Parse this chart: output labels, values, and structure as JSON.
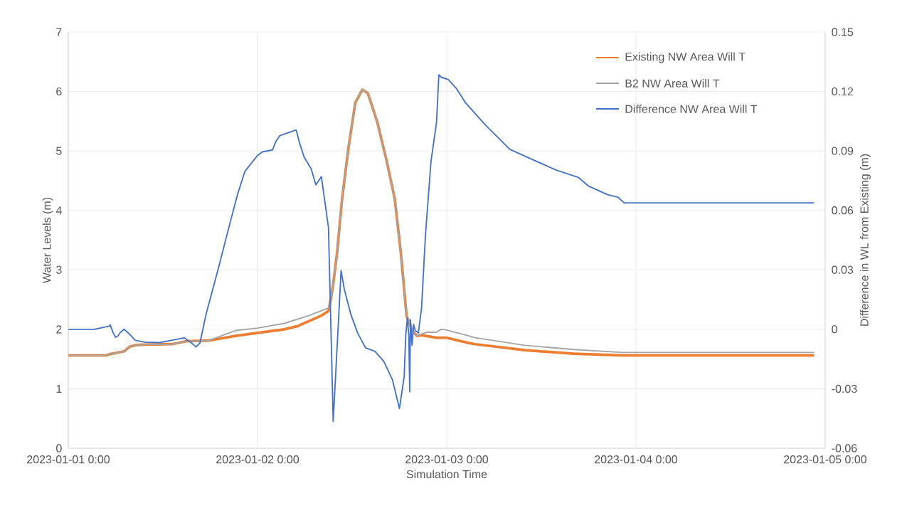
{
  "chart_data": {
    "type": "line",
    "xlabel": "Simulation Time",
    "ylabel": "Water Levels (m)",
    "y2label": "Difference in WL from Existing (m)",
    "xlim": [
      "2023-01-01T00:00",
      "2023-01-05T00:00"
    ],
    "xticks": [
      {
        "value": "2023-01-01T00:00",
        "label": "2023-01-01 0:00"
      },
      {
        "value": "2023-01-02T00:00",
        "label": "2023-01-02 0:00"
      },
      {
        "value": "2023-01-03T00:00",
        "label": "2023-01-03 0:00"
      },
      {
        "value": "2023-01-04T00:00",
        "label": "2023-01-04 0:00"
      },
      {
        "value": "2023-01-05T00:00",
        "label": "2023-01-05 0:00"
      }
    ],
    "ylim": [
      0,
      7
    ],
    "yticks": [
      0,
      1,
      2,
      3,
      4,
      5,
      6,
      7
    ],
    "y2lim": [
      -0.06,
      0.15
    ],
    "y2ticks": [
      -0.06,
      -0.03,
      0,
      0.03,
      0.06,
      0.09,
      0.12,
      0.15
    ],
    "grid": true,
    "legend": "top right",
    "line_style": "solid",
    "series": [
      {
        "name": "Existing NW Area Will T",
        "color": "#ed7d31",
        "x": [
          "2023-01-01T00:00",
          "2023-01-01T04:42",
          "2023-01-01T05:12",
          "2023-01-01T07:06",
          "2023-01-01T07:48",
          "2023-01-01T08:48",
          "2023-01-01T13:06",
          "2023-01-01T15:00",
          "2023-01-01T17:48",
          "2023-01-01T21:12",
          "2023-01-02T00:00",
          "2023-01-02T03:24",
          "2023-01-02T05:00",
          "2023-01-02T08:06",
          "2023-01-02T09:00",
          "2023-01-02T09:18",
          "2023-01-02T09:36",
          "2023-01-02T10:06",
          "2023-01-02T10:42",
          "2023-01-02T11:30",
          "2023-01-02T12:24",
          "2023-01-02T13:18",
          "2023-01-02T14:00",
          "2023-01-02T15:12",
          "2023-01-02T16:24",
          "2023-01-02T17:24",
          "2023-01-02T18:12",
          "2023-01-02T18:54",
          "2023-01-02T19:36",
          "2023-01-02T20:12",
          "2023-01-02T20:48",
          "2023-01-02T22:42",
          "2023-01-02T23:54",
          "2023-01-03T02:48",
          "2023-01-03T03:36",
          "2023-01-03T09:54",
          "2023-01-03T16:06",
          "2023-01-03T20:42",
          "2023-01-03T22:18",
          "2023-01-04T22:36"
        ],
        "values": [
          1.56,
          1.56,
          1.58,
          1.63,
          1.71,
          1.74,
          1.75,
          1.8,
          1.81,
          1.89,
          1.94,
          2.0,
          2.05,
          2.23,
          2.31,
          2.51,
          2.76,
          3.3,
          4.16,
          5.02,
          5.81,
          6.03,
          5.97,
          5.48,
          4.82,
          4.2,
          3.26,
          2.23,
          1.98,
          1.89,
          1.9,
          1.86,
          1.86,
          1.77,
          1.75,
          1.65,
          1.59,
          1.57,
          1.56,
          1.56
        ]
      },
      {
        "name": "B2 NW Area Will T",
        "color": "#a5a5a5",
        "x": [
          "2023-01-01T00:00",
          "2023-01-01T04:42",
          "2023-01-01T05:12",
          "2023-01-01T07:06",
          "2023-01-01T07:48",
          "2023-01-01T08:48",
          "2023-01-01T13:06",
          "2023-01-01T15:00",
          "2023-01-01T17:48",
          "2023-01-01T21:12",
          "2023-01-02T00:00",
          "2023-01-02T03:24",
          "2023-01-02T06:30",
          "2023-01-02T09:00",
          "2023-01-02T09:18",
          "2023-01-02T09:36",
          "2023-01-02T10:06",
          "2023-01-02T10:42",
          "2023-01-02T11:30",
          "2023-01-02T12:24",
          "2023-01-02T13:18",
          "2023-01-02T14:00",
          "2023-01-02T15:12",
          "2023-01-02T16:24",
          "2023-01-02T17:24",
          "2023-01-02T18:12",
          "2023-01-02T18:54",
          "2023-01-02T19:36",
          "2023-01-02T20:12",
          "2023-01-02T21:24",
          "2023-01-02T22:42",
          "2023-01-02T23:18",
          "2023-01-02T23:54",
          "2023-01-03T02:48",
          "2023-01-03T03:36",
          "2023-01-03T09:54",
          "2023-01-03T16:06",
          "2023-01-03T22:18",
          "2023-01-04T22:36"
        ],
        "values": [
          1.56,
          1.56,
          1.58,
          1.63,
          1.71,
          1.74,
          1.75,
          1.8,
          1.81,
          1.98,
          2.02,
          2.1,
          2.23,
          2.36,
          2.51,
          2.76,
          3.3,
          4.16,
          5.02,
          5.81,
          6.03,
          5.97,
          5.48,
          4.82,
          4.2,
          3.26,
          2.23,
          1.98,
          1.89,
          1.95,
          1.95,
          2.0,
          1.99,
          1.89,
          1.86,
          1.73,
          1.66,
          1.61,
          1.61
        ]
      },
      {
        "name": "Difference NW Area Will T",
        "color": "#4472c4",
        "axis": "y2",
        "x": [
          "2023-01-01T00:00",
          "2023-01-01T03:18",
          "2023-01-01T05:12",
          "2023-01-01T05:18",
          "2023-01-01T05:42",
          "2023-01-01T06:00",
          "2023-01-01T06:18",
          "2023-01-01T06:36",
          "2023-01-01T07:06",
          "2023-01-01T07:42",
          "2023-01-01T08:30",
          "2023-01-01T09:42",
          "2023-01-01T11:36",
          "2023-01-01T13:24",
          "2023-01-01T14:42",
          "2023-01-01T15:36",
          "2023-01-01T16:12",
          "2023-01-01T16:42",
          "2023-01-01T17:30",
          "2023-01-01T19:00",
          "2023-01-01T20:36",
          "2023-01-01T21:30",
          "2023-01-01T22:24",
          "2023-01-02T00:00",
          "2023-01-02T00:36",
          "2023-01-02T01:54",
          "2023-01-02T02:18",
          "2023-01-02T02:48",
          "2023-01-02T03:36",
          "2023-01-02T04:54",
          "2023-01-02T05:18",
          "2023-01-02T05:54",
          "2023-01-02T06:48",
          "2023-01-02T07:24",
          "2023-01-02T08:06",
          "2023-01-02T09:00",
          "2023-01-02T09:36",
          "2023-01-02T10:36",
          "2023-01-02T11:00",
          "2023-01-02T11:48",
          "2023-01-02T12:42",
          "2023-01-02T13:42",
          "2023-01-02T14:54",
          "2023-01-02T16:00",
          "2023-01-02T17:06",
          "2023-01-02T18:00",
          "2023-01-02T18:36",
          "2023-01-02T18:48",
          "2023-01-02T19:00",
          "2023-01-02T19:12",
          "2023-01-02T19:18",
          "2023-01-02T19:24",
          "2023-01-02T19:36",
          "2023-01-02T19:48",
          "2023-01-02T20:00",
          "2023-01-02T20:24",
          "2023-01-02T20:48",
          "2023-01-02T21:18",
          "2023-01-02T22:00",
          "2023-01-02T22:42",
          "2023-01-02T23:00",
          "2023-01-02T23:18",
          "2023-01-03T00:12",
          "2023-01-03T01:12",
          "2023-01-03T02:24",
          "2023-01-03T04:54",
          "2023-01-03T08:00",
          "2023-01-03T10:48",
          "2023-01-03T13:54",
          "2023-01-03T16:42",
          "2023-01-03T18:00",
          "2023-01-03T20:24",
          "2023-01-03T21:42",
          "2023-01-03T22:30",
          "2023-01-04T22:36"
        ],
        "values": [
          0,
          0,
          0.0016,
          0.0023,
          -0.0019,
          -0.004,
          -0.0033,
          -0.0016,
          0,
          -0.0022,
          -0.0056,
          -0.0065,
          -0.0067,
          -0.0053,
          -0.0043,
          -0.0068,
          -0.0089,
          -0.0068,
          0.008,
          0.0303,
          0.055,
          0.0685,
          0.0797,
          0.0877,
          0.0895,
          0.0905,
          0.0945,
          0.0976,
          0.0988,
          0.1006,
          0.0945,
          0.087,
          0.081,
          0.0729,
          0.077,
          0.0513,
          -0.0465,
          0.0296,
          0.0204,
          0.008,
          -0.0019,
          -0.0093,
          -0.0111,
          -0.0161,
          -0.0253,
          -0.0399,
          -0.0241,
          -0.0031,
          0.0056,
          -0.0037,
          -0.0315,
          0.0049,
          -0.008,
          0.0025,
          -0.0006,
          -0.0019,
          0.0105,
          0.0475,
          0.0846,
          0.1044,
          0.1284,
          0.1272,
          0.126,
          0.1216,
          0.1142,
          0.1031,
          0.0908,
          0.0858,
          0.0803,
          0.0766,
          0.0722,
          0.0679,
          0.0667,
          0.0638,
          0.0638
        ]
      }
    ]
  }
}
